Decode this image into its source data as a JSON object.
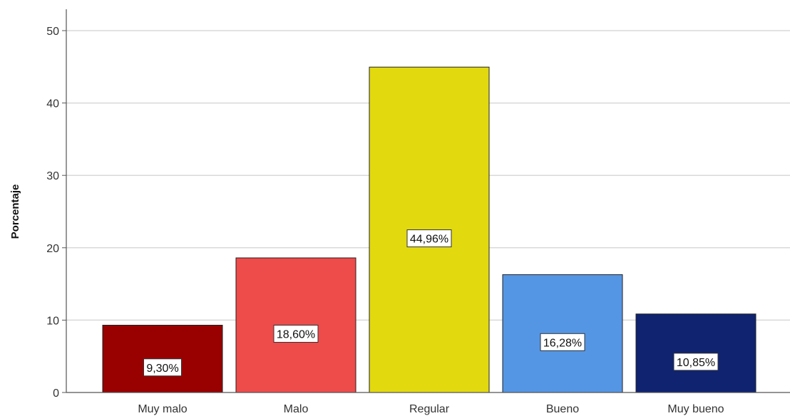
{
  "chart_data": {
    "type": "bar",
    "title": "",
    "xlabel": "",
    "ylabel": "Porcentaje",
    "categories": [
      "Muy malo",
      "Malo",
      "Regular",
      "Bueno",
      "Muy bueno"
    ],
    "values": [
      9.3,
      18.6,
      44.96,
      16.28,
      10.85
    ],
    "data_labels": [
      "9,30%",
      "18,60%",
      "44,96%",
      "16,28%",
      "10,85%"
    ],
    "colors": [
      "#990000",
      "#ee4b4b",
      "#e2d90f",
      "#5596e4",
      "#0f2370"
    ],
    "ylim": [
      0,
      50
    ],
    "yticks": [
      0,
      10,
      20,
      30,
      40,
      50
    ],
    "ytick_labels": [
      "0",
      "10",
      "20",
      "30",
      "40",
      "50"
    ],
    "grid": true,
    "legend": "none"
  }
}
